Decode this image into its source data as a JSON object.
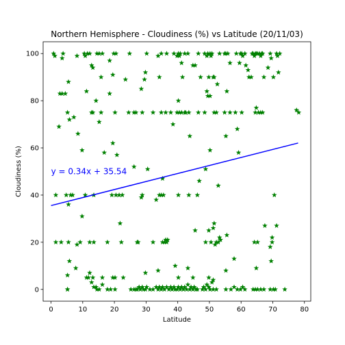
{
  "chart_data": {
    "type": "scatter",
    "title": "Northern Hemisphere - Cloudiness (%) vs Latitude (20/11/03)",
    "xlabel": "Latitude",
    "ylabel": "Cloudiness (%)",
    "xlim": [
      -2.5,
      82
    ],
    "ylim": [
      -5,
      105
    ],
    "xticks": [
      0,
      10,
      20,
      30,
      40,
      50,
      60,
      70,
      80
    ],
    "yticks": [
      0,
      20,
      40,
      60,
      80,
      100
    ],
    "grid": false,
    "marker": "star",
    "point_color": "#008000",
    "regression": {
      "slope": 0.34,
      "intercept": 35.54,
      "x_range": [
        0,
        78
      ],
      "color": "#0000ff",
      "label": "y = 0.34x + 35.54",
      "label_color": "#0000ff",
      "label_at": [
        0,
        50
      ]
    },
    "series": [
      {
        "points": [
          [
            0.8,
            100
          ],
          [
            1.2,
            99
          ],
          [
            3.5,
            98
          ],
          [
            3.8,
            100
          ],
          [
            5.5,
            88
          ],
          [
            7.2,
            73
          ],
          [
            8.2,
            99
          ],
          [
            10.5,
            100
          ],
          [
            10.8,
            99
          ],
          [
            11.5,
            100
          ],
          [
            12.2,
            100
          ],
          [
            12.8,
            95
          ],
          [
            13.2,
            94
          ],
          [
            14.5,
            100
          ],
          [
            15.2,
            100
          ],
          [
            15.8,
            90
          ],
          [
            16.2,
            100
          ],
          [
            18.5,
            97
          ],
          [
            19.8,
            100
          ],
          [
            20.5,
            100
          ],
          [
            19.5,
            91
          ],
          [
            23.5,
            89
          ],
          [
            24.8,
            100
          ],
          [
            29.8,
            92
          ],
          [
            29.5,
            89
          ],
          [
            30.2,
            100
          ],
          [
            33.8,
            99
          ],
          [
            34.8,
            100
          ],
          [
            36.5,
            100
          ],
          [
            38.8,
            100
          ],
          [
            39.8,
            99
          ],
          [
            40.2,
            100
          ],
          [
            40.5,
            99
          ],
          [
            40.8,
            100
          ],
          [
            41.2,
            96
          ],
          [
            41.5,
            90
          ],
          [
            42.2,
            100
          ],
          [
            43.2,
            100
          ],
          [
            44.8,
            95
          ],
          [
            45.5,
            95
          ],
          [
            46.5,
            100
          ],
          [
            47.2,
            90
          ],
          [
            48.5,
            100
          ],
          [
            49.2,
            99
          ],
          [
            49.5,
            100
          ],
          [
            49.8,
            90
          ],
          [
            50.2,
            100
          ],
          [
            50.5,
            99
          ],
          [
            50.8,
            100
          ],
          [
            51.2,
            90
          ],
          [
            51.5,
            90
          ],
          [
            52.5,
            87
          ],
          [
            53.2,
            100
          ],
          [
            54.8,
            100
          ],
          [
            55.2,
            100
          ],
          [
            55.8,
            100
          ],
          [
            56.5,
            96
          ],
          [
            58.5,
            100
          ],
          [
            59.5,
            96
          ],
          [
            59.8,
            100
          ],
          [
            60.2,
            100
          ],
          [
            60.5,
            99
          ],
          [
            61.2,
            100
          ],
          [
            61.5,
            95
          ],
          [
            62.2,
            93
          ],
          [
            62.5,
            90
          ],
          [
            63.2,
            90
          ],
          [
            63.5,
            100
          ],
          [
            63.8,
            100
          ],
          [
            64.2,
            99
          ],
          [
            64.5,
            100
          ],
          [
            64.8,
            100
          ],
          [
            65.2,
            100
          ],
          [
            65.8,
            100
          ],
          [
            66.2,
            99
          ],
          [
            66.5,
            100
          ],
          [
            66.8,
            100
          ],
          [
            67.2,
            90
          ],
          [
            68.5,
            94
          ],
          [
            69.2,
            100
          ],
          [
            69.5,
            98
          ],
          [
            70.2,
            90
          ],
          [
            71.2,
            100
          ],
          [
            71.5,
            99
          ],
          [
            72.2,
            100
          ],
          [
            71.8,
            92
          ],
          [
            2.8,
            83
          ],
          [
            3.5,
            83
          ],
          [
            4.5,
            83
          ],
          [
            5.2,
            75
          ],
          [
            5.8,
            72
          ],
          [
            8.5,
            66
          ],
          [
            11.2,
            84
          ],
          [
            12.8,
            75
          ],
          [
            13.2,
            75
          ],
          [
            14.2,
            80
          ],
          [
            15.2,
            71
          ],
          [
            15.8,
            75
          ],
          [
            18.5,
            83
          ],
          [
            20.2,
            75
          ],
          [
            24.5,
            75
          ],
          [
            26.2,
            75
          ],
          [
            26.8,
            75
          ],
          [
            28.5,
            85
          ],
          [
            28.8,
            75
          ],
          [
            32.2,
            75
          ],
          [
            34.2,
            90
          ],
          [
            34.8,
            75
          ],
          [
            36.2,
            75
          ],
          [
            37.8,
            75
          ],
          [
            38.5,
            70
          ],
          [
            39.8,
            75
          ],
          [
            40.2,
            80
          ],
          [
            40.5,
            75
          ],
          [
            41.2,
            75
          ],
          [
            42.2,
            75
          ],
          [
            42.5,
            75
          ],
          [
            43.5,
            75
          ],
          [
            46.5,
            75
          ],
          [
            48.5,
            75
          ],
          [
            49.2,
            84
          ],
          [
            49.5,
            82
          ],
          [
            50.2,
            82
          ],
          [
            51.5,
            75
          ],
          [
            52.2,
            75
          ],
          [
            54.8,
            75
          ],
          [
            55.2,
            65
          ],
          [
            55.5,
            84
          ],
          [
            56.5,
            75
          ],
          [
            58.2,
            75
          ],
          [
            60.2,
            75
          ],
          [
            64.5,
            75
          ],
          [
            64.8,
            77
          ],
          [
            65.5,
            75
          ],
          [
            66.2,
            75
          ],
          [
            66.8,
            75
          ],
          [
            77.5,
            76
          ],
          [
            78.2,
            75
          ],
          [
            2.5,
            69
          ],
          [
            9.8,
            59
          ],
          [
            16.8,
            58
          ],
          [
            19.5,
            62
          ],
          [
            20.8,
            57
          ],
          [
            26.2,
            52
          ],
          [
            30.5,
            51
          ],
          [
            35.2,
            47
          ],
          [
            43.8,
            65
          ],
          [
            46.8,
            46
          ],
          [
            48.8,
            51
          ],
          [
            50.2,
            59
          ],
          [
            52.8,
            44
          ],
          [
            58.8,
            68
          ],
          [
            59.2,
            58
          ],
          [
            1.5,
            40
          ],
          [
            4.8,
            40
          ],
          [
            5.5,
            36
          ],
          [
            6.2,
            40
          ],
          [
            6.8,
            40
          ],
          [
            10.8,
            40
          ],
          [
            13.5,
            40
          ],
          [
            19.2,
            40
          ],
          [
            20.5,
            40
          ],
          [
            21.5,
            40
          ],
          [
            22.5,
            40
          ],
          [
            28.8,
            40
          ],
          [
            28.5,
            39
          ],
          [
            33.2,
            38
          ],
          [
            34.2,
            40
          ],
          [
            34.8,
            40
          ],
          [
            35.5,
            40
          ],
          [
            40.2,
            40
          ],
          [
            43.5,
            40
          ],
          [
            46.2,
            40
          ],
          [
            70.5,
            40
          ],
          [
            9.8,
            31
          ],
          [
            21.8,
            28
          ],
          [
            45.5,
            25
          ],
          [
            49.8,
            25
          ],
          [
            51.2,
            26
          ],
          [
            51.5,
            28
          ],
          [
            53.2,
            22
          ],
          [
            55.5,
            23
          ],
          [
            67.5,
            27
          ],
          [
            69.8,
            22
          ],
          [
            71.2,
            27
          ],
          [
            1.5,
            20
          ],
          [
            3.2,
            20
          ],
          [
            5.5,
            20
          ],
          [
            8.2,
            19
          ],
          [
            9.2,
            20
          ],
          [
            12.2,
            20
          ],
          [
            13.5,
            20
          ],
          [
            17.8,
            20
          ],
          [
            22.2,
            20
          ],
          [
            27.2,
            20
          ],
          [
            27.5,
            20
          ],
          [
            32.2,
            20
          ],
          [
            35.2,
            20
          ],
          [
            35.8,
            20
          ],
          [
            36.2,
            21
          ],
          [
            36.5,
            20
          ],
          [
            36.8,
            21
          ],
          [
            48.8,
            20
          ],
          [
            50.5,
            20
          ],
          [
            51.8,
            19
          ],
          [
            52.2,
            20
          ],
          [
            52.8,
            20
          ],
          [
            53.5,
            21
          ],
          [
            64.2,
            20
          ],
          [
            65.2,
            20
          ],
          [
            69.2,
            18
          ],
          [
            69.8,
            20
          ],
          [
            5.8,
            12
          ],
          [
            69.5,
            12
          ],
          [
            57.8,
            13
          ],
          [
            7.8,
            9
          ],
          [
            11.8,
            5
          ],
          [
            12.2,
            7
          ],
          [
            13.2,
            5
          ],
          [
            16.2,
            5
          ],
          [
            19.5,
            5
          ],
          [
            20.2,
            5
          ],
          [
            22.8,
            5
          ],
          [
            29.8,
            7
          ],
          [
            33.8,
            8
          ],
          [
            39.2,
            10
          ],
          [
            40.2,
            5
          ],
          [
            43.2,
            9
          ],
          [
            44.8,
            5
          ],
          [
            49.8,
            5
          ],
          [
            51.2,
            4
          ],
          [
            55.2,
            8
          ],
          [
            64.8,
            9
          ],
          [
            5.2,
            6
          ],
          [
            11.2,
            5
          ],
          [
            12.8,
            3
          ],
          [
            13.5,
            1
          ],
          [
            14.2,
            1
          ],
          [
            15.2,
            0
          ],
          [
            16.2,
            2
          ],
          [
            18.8,
            0
          ],
          [
            5.2,
            0
          ],
          [
            14.5,
            0
          ],
          [
            17.8,
            0
          ],
          [
            20.2,
            0
          ],
          [
            25.2,
            0
          ],
          [
            26.2,
            0
          ],
          [
            27.2,
            0
          ],
          [
            27.8,
            1
          ],
          [
            28.2,
            0
          ],
          [
            28.8,
            1
          ],
          [
            29.2,
            0
          ],
          [
            29.8,
            0
          ],
          [
            30.2,
            1
          ],
          [
            31.2,
            0
          ],
          [
            33.2,
            1
          ],
          [
            33.8,
            0
          ],
          [
            34.2,
            1
          ],
          [
            34.8,
            0
          ],
          [
            35.2,
            1
          ],
          [
            35.8,
            0
          ],
          [
            36.5,
            1
          ],
          [
            37.2,
            0
          ],
          [
            37.8,
            1
          ],
          [
            38.2,
            0
          ],
          [
            38.8,
            1
          ],
          [
            39.2,
            0
          ],
          [
            39.8,
            0
          ],
          [
            40.2,
            1
          ],
          [
            40.8,
            0
          ],
          [
            41.2,
            1
          ],
          [
            41.8,
            0
          ],
          [
            42.2,
            1
          ],
          [
            42.8,
            0
          ],
          [
            43.2,
            2
          ],
          [
            43.8,
            0
          ],
          [
            44.2,
            1
          ],
          [
            44.8,
            0
          ],
          [
            45.2,
            1
          ],
          [
            45.8,
            0
          ],
          [
            46.2,
            0
          ],
          [
            47.8,
            0
          ],
          [
            48.2,
            1
          ],
          [
            48.8,
            0
          ],
          [
            49.2,
            2
          ],
          [
            49.8,
            1
          ],
          [
            50.2,
            0
          ],
          [
            50.8,
            3
          ],
          [
            51.2,
            0
          ],
          [
            52.2,
            0
          ],
          [
            55.2,
            0
          ],
          [
            56.8,
            0
          ],
          [
            57.8,
            1
          ],
          [
            58.8,
            0
          ],
          [
            59.8,
            0
          ],
          [
            60.5,
            1
          ],
          [
            61.2,
            0
          ],
          [
            63.8,
            0
          ],
          [
            64.5,
            0
          ],
          [
            65.2,
            0
          ],
          [
            66.2,
            0
          ],
          [
            67.2,
            0
          ],
          [
            69.2,
            0
          ],
          [
            70.2,
            0
          ],
          [
            70.8,
            0
          ],
          [
            73.8,
            0
          ],
          [
            5.2,
            0
          ],
          [
            26.8,
            0
          ],
          [
            32.2,
            0
          ]
        ]
      }
    ]
  }
}
